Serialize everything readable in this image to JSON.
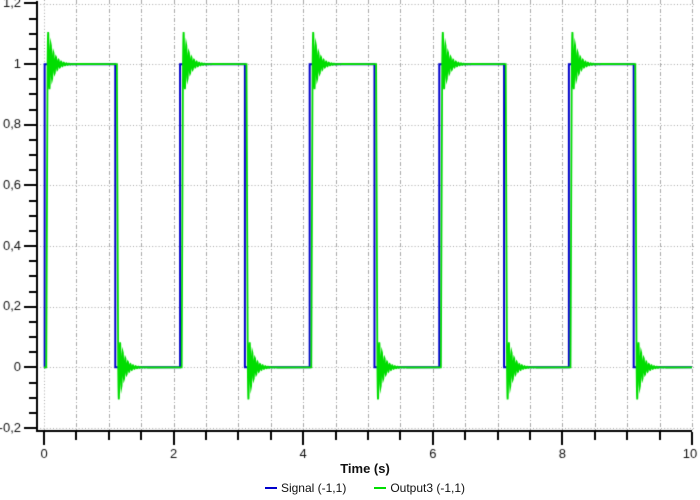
{
  "chart_data": {
    "type": "line",
    "title": "",
    "xlabel": "Time (s)",
    "ylabel": "",
    "xlim": [
      0,
      10
    ],
    "ylim": [
      -0.2,
      1.2
    ],
    "x_major_ticks": [
      0,
      2,
      4,
      6,
      8,
      10
    ],
    "x_tick_labels": [
      "0",
      "2",
      "4",
      "6",
      "8",
      "10"
    ],
    "x_minor_step": 0.5,
    "y_major_ticks": [
      -0.2,
      0,
      0.2,
      0.4,
      0.6,
      0.8,
      1,
      1.2
    ],
    "y_tick_labels": [
      "-0,2",
      "0",
      "0,2",
      "0,4",
      "0,6",
      "0,8",
      "1",
      "1,2"
    ],
    "y_minor_step": 0.05,
    "grid": {
      "horizontal_style": "dotted",
      "vertical_style": "dash-dot",
      "color": "#a8a8a8"
    },
    "axis_color": "#000000",
    "tick_label_color": "#111111",
    "legend": {
      "position": "bottom",
      "entries": [
        {
          "label": "Signal (-1,1)",
          "color": "#0000cc"
        },
        {
          "label": "Output3 (-1,1)",
          "color": "#00dd00"
        }
      ]
    },
    "series": [
      {
        "name": "Signal (-1,1)",
        "color": "#0000cc",
        "kind": "square-wave",
        "initial_level": 0,
        "edges": [
          {
            "t": 0.01,
            "level": 1
          },
          {
            "t": 1.1,
            "level": 0
          },
          {
            "t": 2.1,
            "level": 1
          },
          {
            "t": 3.1,
            "level": 0
          },
          {
            "t": 4.1,
            "level": 1
          },
          {
            "t": 5.1,
            "level": 0
          },
          {
            "t": 6.1,
            "level": 1
          },
          {
            "t": 7.1,
            "level": 0
          },
          {
            "t": 8.1,
            "level": 1
          },
          {
            "t": 9.1,
            "level": 0
          }
        ]
      },
      {
        "name": "Output3 (-1,1)",
        "color": "#00dd00",
        "kind": "square-wave-with-ringing",
        "initial_level": 0,
        "delay": 0.025,
        "ramp": 0.02,
        "ring_freq_hz": 25,
        "ring_amplitude": 0.12,
        "ring_decay_tau": 0.08,
        "ring_duration": 0.45,
        "edges": [
          {
            "t": 0.01,
            "level": 1
          },
          {
            "t": 1.1,
            "level": 0
          },
          {
            "t": 2.1,
            "level": 1
          },
          {
            "t": 3.1,
            "level": 0
          },
          {
            "t": 4.1,
            "level": 1
          },
          {
            "t": 5.1,
            "level": 0
          },
          {
            "t": 6.1,
            "level": 1
          },
          {
            "t": 7.1,
            "level": 0
          },
          {
            "t": 8.1,
            "level": 1
          },
          {
            "t": 9.1,
            "level": 0
          }
        ]
      }
    ]
  }
}
